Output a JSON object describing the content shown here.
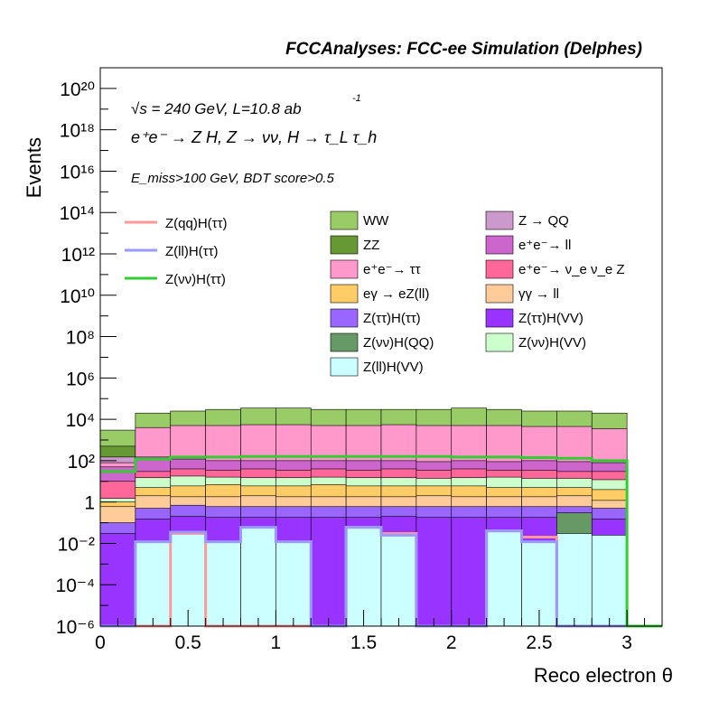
{
  "chart_data": {
    "type": "area",
    "title": "FCCAnalyses: FCC-ee Simulation (Delphes)",
    "xlabel": "Reco electron θ",
    "ylabel": "Events",
    "xlim": [
      0,
      3.2
    ],
    "ylim": [
      1e-06,
      1e+21
    ],
    "yscale": "log",
    "grid": false,
    "legend_position": "middle",
    "annotations": {
      "energy": "√s = 240 GeV, L=10.8 ab",
      "lumi_exponent": "-1",
      "process": "e⁺e⁻ → Z H, Z → νν, H → τ_L τ_h",
      "selection": "E_miss>100 GeV, BDT score>0.5"
    },
    "x_ticks": [
      "0",
      "0.5",
      "1",
      "1.5",
      "2",
      "2.5",
      "3"
    ],
    "x_tick_values": [
      0,
      0.5,
      1,
      1.5,
      2,
      2.5,
      3
    ],
    "y_ticks": [
      "10⁻⁶",
      "10⁻⁴",
      "10⁻²",
      "1",
      "10²",
      "10⁴",
      "10⁶",
      "10⁸",
      "10¹⁰",
      "10¹²",
      "10¹⁴",
      "10¹⁶",
      "10¹⁸",
      "10²⁰"
    ],
    "y_tick_exponents": [
      -6,
      -4,
      -2,
      0,
      2,
      4,
      6,
      8,
      10,
      12,
      14,
      16,
      18,
      20
    ],
    "bin_edges": [
      0,
      0.2,
      0.4,
      0.6,
      0.8,
      1.0,
      1.2,
      1.4,
      1.6,
      1.8,
      2.0,
      2.2,
      2.4,
      2.6,
      2.8,
      3.0,
      3.2
    ],
    "stack_order_bottom_to_top": [
      "Z(ll)H(VV)",
      "Z(νν)H(QQ)",
      "Z(ττ)H(VV)",
      "Z(ττ)H(ττ)",
      "γγ → ll",
      "eγ → eZ(ll)",
      "Z(νν)H(VV)",
      "e⁺e⁻→ ν_e ν_e Z",
      "e⁺e⁻→ ll",
      "e⁺e⁻→ ττ",
      "Z → QQ",
      "ZZ",
      "WW"
    ],
    "stacked_series": [
      {
        "name": "WW",
        "color": "#99cc66",
        "totals": [
          3000,
          20000,
          25000,
          30000,
          35000,
          35000,
          30000,
          30000,
          30000,
          30000,
          35000,
          30000,
          25000,
          25000,
          20000,
          0
        ]
      },
      {
        "name": "ZZ",
        "color": "#669933",
        "totals": [
          500,
          600,
          900,
          800,
          800,
          700,
          800,
          800,
          900,
          700,
          800,
          700,
          800,
          700,
          600,
          0
        ]
      },
      {
        "name": "Z → QQ",
        "color": "#cc99cc",
        "totals": [
          150,
          250,
          350,
          300,
          300,
          250,
          300,
          300,
          300,
          300,
          250,
          250,
          250,
          250,
          200,
          0
        ]
      },
      {
        "name": "e⁺e⁻→ ττ",
        "color": "#ff99cc",
        "totals": [
          80,
          4000,
          5000,
          5000,
          5500,
          5500,
          5000,
          5000,
          5500,
          5000,
          5000,
          5000,
          4500,
          4500,
          3500,
          0
        ]
      },
      {
        "name": "e⁺e⁻→ ll",
        "color": "#cc66cc",
        "totals": [
          50,
          150,
          120,
          100,
          100,
          100,
          100,
          100,
          100,
          90,
          100,
          90,
          100,
          90,
          80,
          0
        ]
      },
      {
        "name": "e⁺e⁻→ ν_e ν_e Z",
        "color": "#ff6699",
        "totals": [
          10,
          30,
          40,
          35,
          40,
          35,
          40,
          35,
          40,
          35,
          40,
          35,
          35,
          30,
          30,
          0
        ]
      },
      {
        "name": "Z(νν)H(VV)",
        "color": "#ccffcc",
        "totals": [
          1.5,
          15,
          18,
          16,
          15,
          15,
          16,
          15,
          15,
          14,
          15,
          16,
          14,
          14,
          12,
          0
        ]
      },
      {
        "name": "eγ → eZ(ll)",
        "color": "#ffcc66",
        "totals": [
          1.0,
          5,
          6,
          7,
          6,
          6,
          7,
          6,
          6,
          6,
          6,
          5,
          5,
          5,
          4,
          0
        ]
      },
      {
        "name": "γγ → ll",
        "color": "#ffcc99",
        "totals": [
          0.6,
          2.0,
          1.8,
          1.8,
          2.0,
          1.8,
          1.8,
          1.8,
          1.8,
          2.0,
          1.8,
          1.8,
          1.8,
          2.0,
          1.2,
          0
        ]
      },
      {
        "name": "Z(ττ)H(ττ)",
        "color": "#9966ff",
        "totals": [
          0.1,
          0.5,
          0.7,
          0.6,
          0.6,
          0.6,
          0.6,
          0.6,
          0.6,
          0.6,
          0.6,
          0.6,
          0.6,
          0.6,
          0.5,
          0
        ]
      },
      {
        "name": "Z(ττ)H(VV)",
        "color": "#9933ff",
        "totals": [
          0.03,
          0.15,
          0.2,
          0.18,
          0.18,
          0.18,
          0.18,
          0.18,
          0.2,
          0.18,
          0.18,
          0.18,
          0.18,
          0.18,
          0.15,
          0
        ]
      },
      {
        "name": "Z(νν)H(QQ)",
        "color": "#669966",
        "totals": [
          0,
          0.012,
          0.012,
          0,
          0,
          0,
          0,
          0,
          0,
          0,
          0,
          0,
          0,
          0.3,
          0,
          0
        ]
      },
      {
        "name": "Z(ll)H(VV)",
        "color": "#ccffff",
        "totals": [
          0,
          0.012,
          0.035,
          0.012,
          0.06,
          0.012,
          0,
          0.06,
          0.025,
          0,
          0,
          0.04,
          0.012,
          0.03,
          0.025,
          0
        ]
      }
    ],
    "line_series": [
      {
        "name": "Z(qq)H(ττ)",
        "color": "#ff9999",
        "values": [
          0,
          0,
          0.03,
          0,
          0,
          0,
          0,
          0.06,
          0.03,
          0,
          0,
          0.04,
          0.02,
          0,
          0,
          0
        ]
      },
      {
        "name": "Z(ll)H(ττ)",
        "color": "#9999ff",
        "values": [
          0,
          0.012,
          0.035,
          0.012,
          0.06,
          0.012,
          0,
          0.06,
          0.025,
          0,
          0,
          0.04,
          0.012,
          0,
          0,
          0
        ]
      },
      {
        "name": "Z(νν)H(ττ)",
        "color": "#33cc33",
        "values": [
          30,
          120,
          150,
          150,
          160,
          160,
          160,
          160,
          160,
          160,
          150,
          150,
          140,
          130,
          100,
          0
        ]
      }
    ],
    "legend_lines": [
      "Z(qq)H(ττ)",
      "Z(ll)H(ττ)",
      "Z(νν)H(ττ)"
    ],
    "legend_boxes": [
      {
        "label": "WW",
        "color": "#99cc66"
      },
      {
        "label": "Z → QQ",
        "color": "#cc99cc"
      },
      {
        "label": "ZZ",
        "color": "#669933"
      },
      {
        "label": "e⁺e⁻→ ll",
        "color": "#cc66cc"
      },
      {
        "label": "e⁺e⁻→ ττ",
        "color": "#ff99cc"
      },
      {
        "label": "e⁺e⁻→ ν_e ν_e Z",
        "color": "#ff6699"
      },
      {
        "label": "eγ → eZ(ll)",
        "color": "#ffcc66"
      },
      {
        "label": "γγ → ll",
        "color": "#ffcc99"
      },
      {
        "label": "Z(ττ)H(ττ)",
        "color": "#9966ff"
      },
      {
        "label": "Z(ττ)H(VV)",
        "color": "#9933ff"
      },
      {
        "label": "Z(νν)H(QQ)",
        "color": "#669966"
      },
      {
        "label": "Z(νν)H(VV)",
        "color": "#ccffcc"
      },
      {
        "label": "Z(ll)H(VV)",
        "color": "#ccffff"
      }
    ]
  }
}
